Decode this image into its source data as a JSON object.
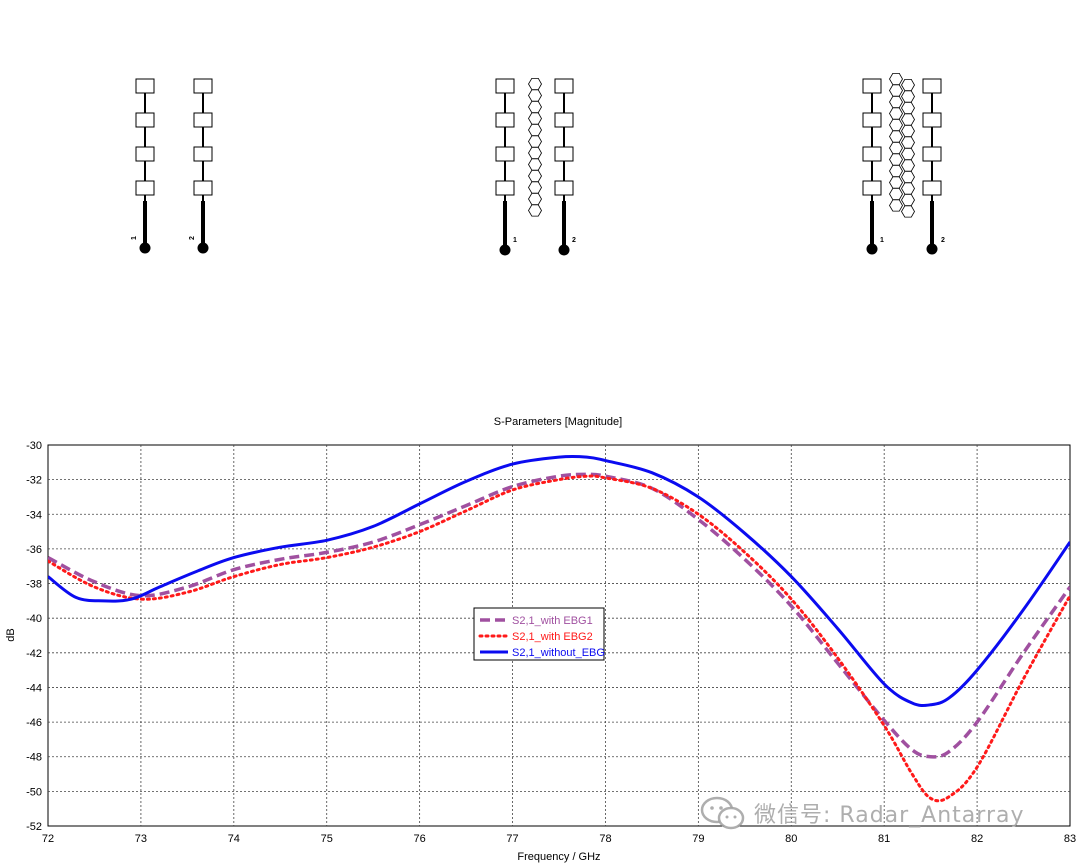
{
  "diagrams": [
    {
      "id": "without-ebg",
      "port_labels": [
        "1",
        "2"
      ]
    },
    {
      "id": "with-ebg1",
      "port_labels": [
        "1",
        "2"
      ]
    },
    {
      "id": "with-ebg2",
      "port_labels": [
        "1",
        "2"
      ]
    }
  ],
  "watermark": {
    "text": "微信号: Radar_Antarray",
    "icon": "wechat-icon"
  },
  "chart_data": {
    "type": "line",
    "title": "S-Parameters [Magnitude]",
    "xlabel": "Frequency / GHz",
    "ylabel": "dB",
    "xlim": [
      72,
      83
    ],
    "ylim": [
      -52,
      -30
    ],
    "xticks": [
      "72",
      "73",
      "74",
      "75",
      "76",
      "77",
      "78",
      "79",
      "80",
      "81",
      "82",
      "83"
    ],
    "yticks": [
      "-30",
      "-32",
      "-34",
      "-36",
      "-38",
      "-40",
      "-42",
      "-44",
      "-46",
      "-48",
      "-50",
      "-52"
    ],
    "grid": true,
    "legend_position": "center",
    "series": [
      {
        "name": "S2,1_with EBG1",
        "color": "#a050a0",
        "style": "dashed",
        "x": [
          72,
          72.5,
          73,
          73.5,
          74,
          74.5,
          75,
          75.5,
          76,
          76.5,
          77,
          77.5,
          77.8,
          78,
          78.5,
          79,
          79.5,
          80,
          80.5,
          81,
          81.3,
          81.5,
          81.7,
          82,
          82.5,
          83
        ],
        "y": [
          -36.5,
          -37.9,
          -38.7,
          -38.2,
          -37.2,
          -36.6,
          -36.2,
          -35.6,
          -34.6,
          -33.5,
          -32.4,
          -31.8,
          -31.7,
          -31.8,
          -32.5,
          -34.3,
          -36.6,
          -39.3,
          -42.6,
          -45.9,
          -47.6,
          -48.0,
          -47.7,
          -46.0,
          -42.0,
          -38.2
        ]
      },
      {
        "name": "S2,1_with EBG2",
        "color": "#ff1a1a",
        "style": "dotted",
        "x": [
          72,
          72.5,
          73,
          73.5,
          74,
          74.5,
          75,
          75.5,
          76,
          76.5,
          77,
          77.5,
          77.8,
          78,
          78.5,
          79,
          79.5,
          80,
          80.5,
          81,
          81.3,
          81.5,
          81.7,
          82,
          82.5,
          83
        ],
        "y": [
          -36.7,
          -38.2,
          -38.9,
          -38.5,
          -37.6,
          -36.9,
          -36.5,
          -35.9,
          -35.0,
          -33.8,
          -32.6,
          -32.0,
          -31.8,
          -31.9,
          -32.5,
          -34.0,
          -36.2,
          -38.9,
          -42.3,
          -46.2,
          -49.0,
          -50.4,
          -50.3,
          -48.6,
          -43.5,
          -38.7
        ]
      },
      {
        "name": "S2,1_without_EBG",
        "color": "#0b0bf0",
        "style": "solid",
        "x": [
          72,
          72.3,
          72.6,
          72.9,
          73.2,
          73.6,
          74,
          74.5,
          75,
          75.5,
          76,
          76.5,
          77,
          77.5,
          77.8,
          78,
          78.5,
          79,
          79.5,
          80,
          80.5,
          81,
          81.3,
          81.5,
          81.7,
          82,
          82.5,
          83
        ],
        "y": [
          -37.6,
          -38.8,
          -39.0,
          -38.9,
          -38.2,
          -37.3,
          -36.5,
          -35.9,
          -35.5,
          -34.7,
          -33.4,
          -32.1,
          -31.1,
          -30.7,
          -30.7,
          -30.9,
          -31.6,
          -33.0,
          -35.1,
          -37.6,
          -40.6,
          -43.8,
          -44.9,
          -45.0,
          -44.6,
          -43.0,
          -39.5,
          -35.6
        ]
      }
    ]
  }
}
